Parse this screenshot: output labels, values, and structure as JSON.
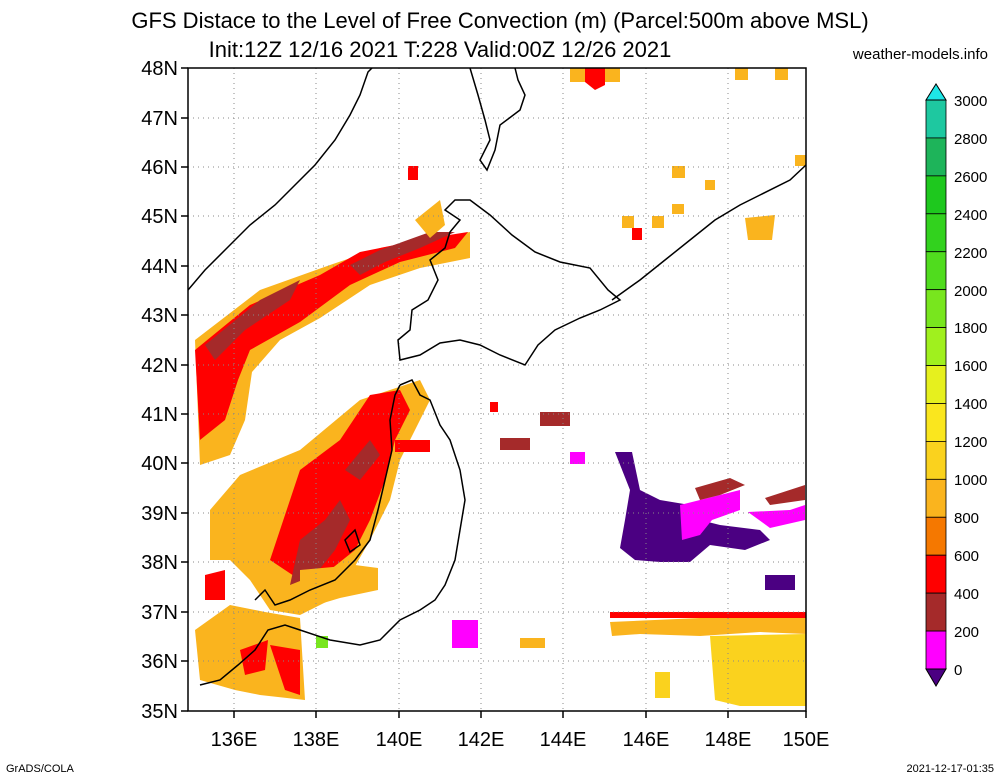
{
  "header": {
    "title_line1": "GFS Distace to the Level of Free Convection (m) (Parcel:500m above MSL)",
    "title_line2": "Init:12Z 12/16 2021 T:228 Valid:00Z 12/26 2021",
    "credit": "weather-models.info"
  },
  "footer": {
    "left": "GrADS/COLA",
    "right": "2021-12-17-01:35"
  },
  "map": {
    "lat_labels": [
      "48N",
      "47N",
      "46N",
      "45N",
      "44N",
      "43N",
      "42N",
      "41N",
      "40N",
      "39N",
      "38N",
      "37N",
      "36N",
      "35N"
    ],
    "lon_labels": [
      "136E",
      "138E",
      "140E",
      "142E",
      "144E",
      "146E",
      "148E",
      "150E"
    ],
    "lat_range": [
      35,
      48
    ],
    "lon_range": [
      135,
      150
    ],
    "grid": true
  },
  "colorbar": {
    "labels": [
      "3000",
      "2800",
      "2600",
      "2400",
      "2200",
      "2000",
      "1800",
      "1600",
      "1400",
      "1200",
      "1000",
      "800",
      "600",
      "400",
      "200",
      "0"
    ],
    "colors": [
      "#1ee6e6",
      "#1ec8a0",
      "#1eb45a",
      "#1ec81e",
      "#32d21e",
      "#50dc1e",
      "#78e61e",
      "#a0f01e",
      "#e6f01e",
      "#fae61e",
      "#fad21e",
      "#fab41e",
      "#f57800",
      "#ff0000",
      "#a52a2a",
      "#ff00ff",
      "#4b0082"
    ]
  },
  "chart_data": {
    "type": "heatmap",
    "title": "GFS Distace to the Level of Free Convection (m) (Parcel:500m above MSL)",
    "subtitle": "Init:12Z 12/16 2021 T:228 Valid:00Z 12/26 2021",
    "x_ticks": [
      "136E",
      "138E",
      "140E",
      "142E",
      "144E",
      "146E",
      "148E",
      "150E"
    ],
    "y_ticks": [
      "35N",
      "36N",
      "37N",
      "38N",
      "39N",
      "40N",
      "41N",
      "42N",
      "43N",
      "44N",
      "45N",
      "46N",
      "47N",
      "48N"
    ],
    "colorbar_levels": [
      0,
      200,
      400,
      600,
      800,
      1000,
      1200,
      1400,
      1600,
      1800,
      2000,
      2200,
      2400,
      2600,
      2800,
      3000
    ]
  }
}
